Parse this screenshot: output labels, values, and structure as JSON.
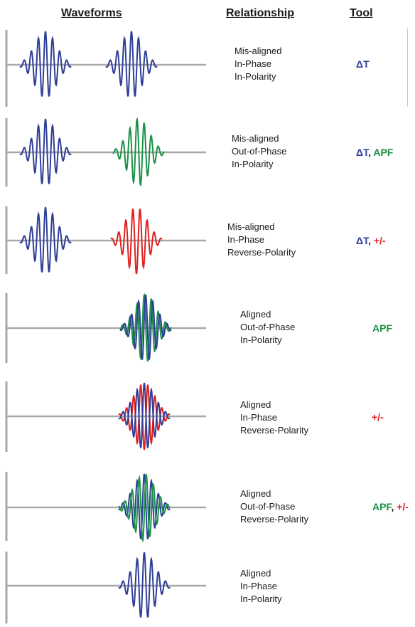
{
  "headers": {
    "waveforms": "Waveforms",
    "relationship": "Relationship",
    "tool": "Tool"
  },
  "colors": {
    "blue": "#2e3e98",
    "green": "#1a9145",
    "red": "#e02020",
    "axis": "#a8a8a8"
  },
  "rows": [
    {
      "relationship": [
        "Mis-aligned",
        "In-Phase",
        "In-Polarity"
      ],
      "tools": [
        {
          "text": "ΔT",
          "color": "blue"
        }
      ]
    },
    {
      "relationship": [
        "Mis-aligned",
        "Out-of-Phase",
        "In-Polarity"
      ],
      "tools": [
        {
          "text": "ΔT",
          "color": "blue"
        },
        {
          "text": "APF",
          "color": "green"
        }
      ]
    },
    {
      "relationship": [
        "Mis-aligned",
        "In-Phase",
        "Reverse-Polarity"
      ],
      "tools": [
        {
          "text": "ΔT",
          "color": "blue"
        },
        {
          "text": "+/-",
          "color": "red"
        }
      ]
    },
    {
      "relationship": [
        "Aligned",
        "Out-of-Phase",
        "In-Polarity"
      ],
      "tools": [
        {
          "text": "APF",
          "color": "green"
        }
      ]
    },
    {
      "relationship": [
        "Aligned",
        "In-Phase",
        "Reverse-Polarity"
      ],
      "tools": [
        {
          "text": "+/-",
          "color": "red"
        }
      ]
    },
    {
      "relationship": [
        "Aligned",
        "Out-of-Phase",
        "Reverse-Polarity"
      ],
      "tools": [
        {
          "text": "APF",
          "color": "green"
        },
        {
          "text": "+/-",
          "color": "red"
        }
      ]
    },
    {
      "relationship": [
        "Aligned",
        "In-Phase",
        "In-Polarity"
      ],
      "tools": []
    }
  ]
}
